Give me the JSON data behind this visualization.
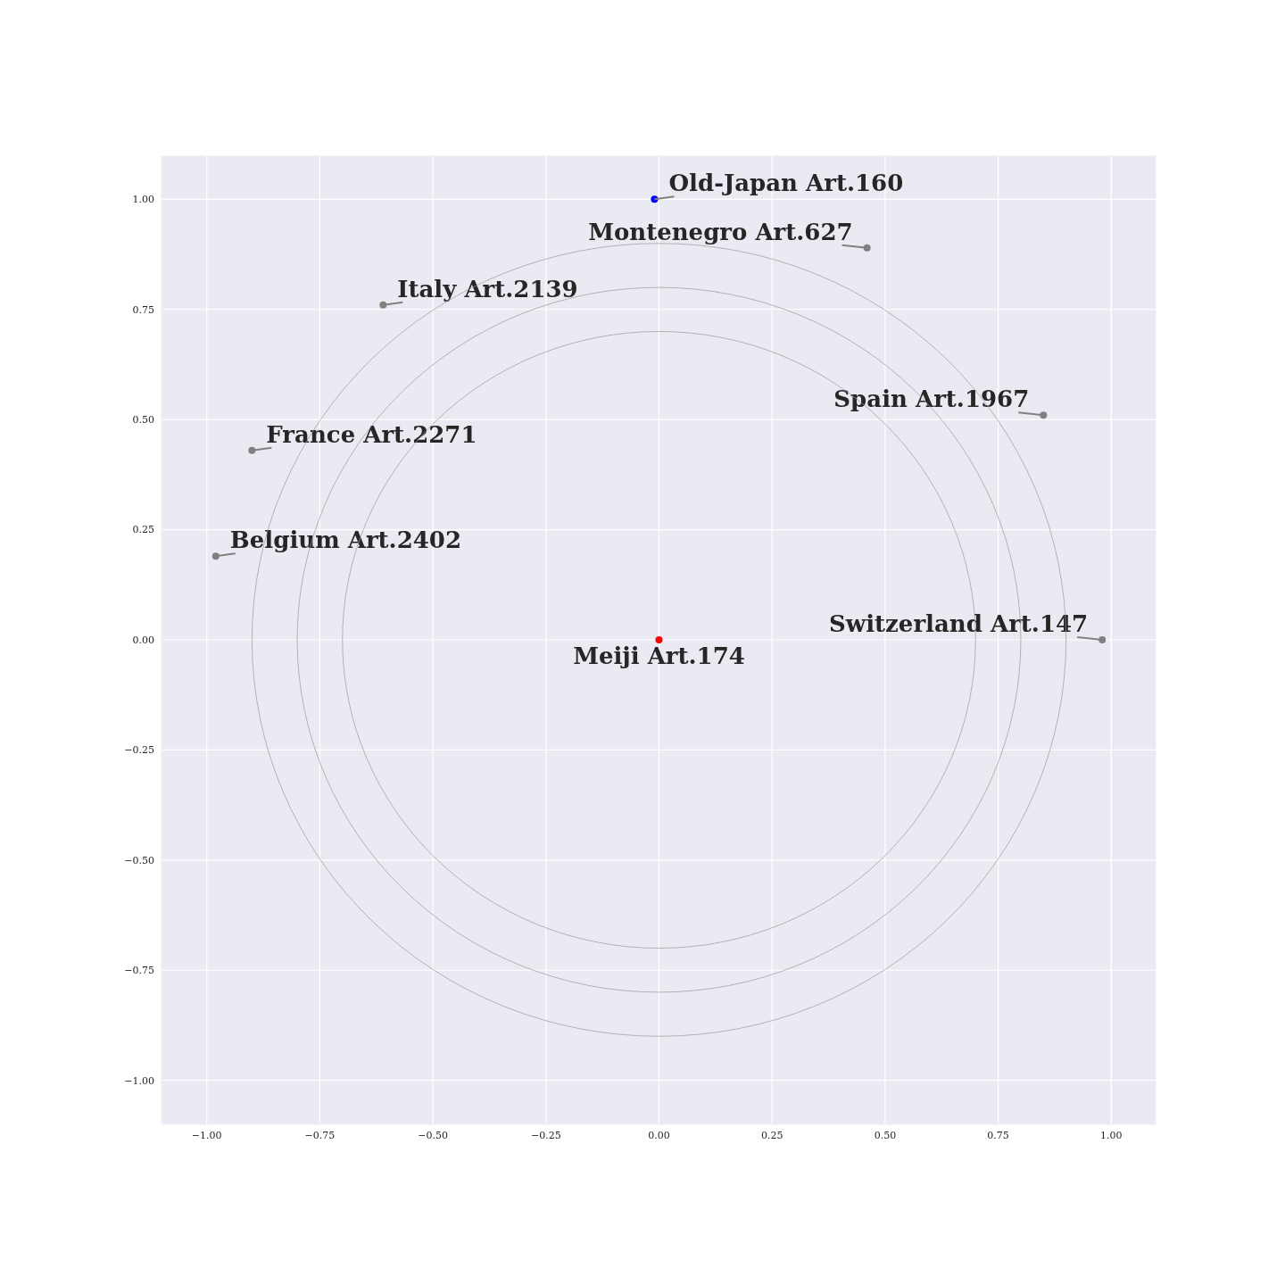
{
  "chart_data": {
    "type": "scatter",
    "marker": "circle",
    "grid": true,
    "xlim": [
      -1.1,
      1.1
    ],
    "ylim": [
      -1.1,
      1.1
    ],
    "xticks": [
      {
        "value": -1,
        "label": "−1.00"
      },
      {
        "value": -0.75,
        "label": "−0.75"
      },
      {
        "value": -0.5,
        "label": "−0.50"
      },
      {
        "value": -0.25,
        "label": "−0.25"
      },
      {
        "value": 0,
        "label": "0.00"
      },
      {
        "value": 0.25,
        "label": "0.25"
      },
      {
        "value": 0.5,
        "label": "0.50"
      },
      {
        "value": 0.75,
        "label": "0.75"
      },
      {
        "value": 1,
        "label": "1.00"
      }
    ],
    "yticks": [
      {
        "value": -1,
        "label": "−1.00"
      },
      {
        "value": -0.75,
        "label": "−0.75"
      },
      {
        "value": -0.5,
        "label": "−0.50"
      },
      {
        "value": -0.25,
        "label": "−0.25"
      },
      {
        "value": 0,
        "label": "0.00"
      },
      {
        "value": 0.25,
        "label": "0.25"
      },
      {
        "value": 0.5,
        "label": "0.50"
      },
      {
        "value": 0.75,
        "label": "0.75"
      },
      {
        "value": 1,
        "label": "1.00"
      }
    ],
    "series": [
      {
        "x": [
          -0.01,
          0.46,
          -0.61,
          0.85,
          -0.9,
          -0.98,
          0.98,
          0
        ],
        "values": [
          1,
          0.89,
          0.76,
          0.51,
          0.43,
          0.19,
          0,
          0
        ],
        "colors": [
          "#0000ff",
          "#808080",
          "#808080",
          "#808080",
          "#808080",
          "#808080",
          "#808080",
          "#ff0000"
        ]
      }
    ],
    "annotations": [
      {
        "text": "Old-Japan Art.160",
        "x": -0.01,
        "y": 1
      },
      {
        "text": "Montenegro Art.627",
        "x": 0.46,
        "y": 0.89
      },
      {
        "text": "Italy Art.2139",
        "x": -0.61,
        "y": 0.76
      },
      {
        "text": "Spain Art.1967",
        "x": 0.85,
        "y": 0.51
      },
      {
        "text": "France Art.2271",
        "x": -0.9,
        "y": 0.43
      },
      {
        "text": "Belgium Art.2402",
        "x": -0.98,
        "y": 0.19
      },
      {
        "text": "Switzerland Art.147",
        "x": 0.98,
        "y": 0
      },
      {
        "text": "Meiji Art.174",
        "x": 0,
        "y": 0
      }
    ]
  }
}
